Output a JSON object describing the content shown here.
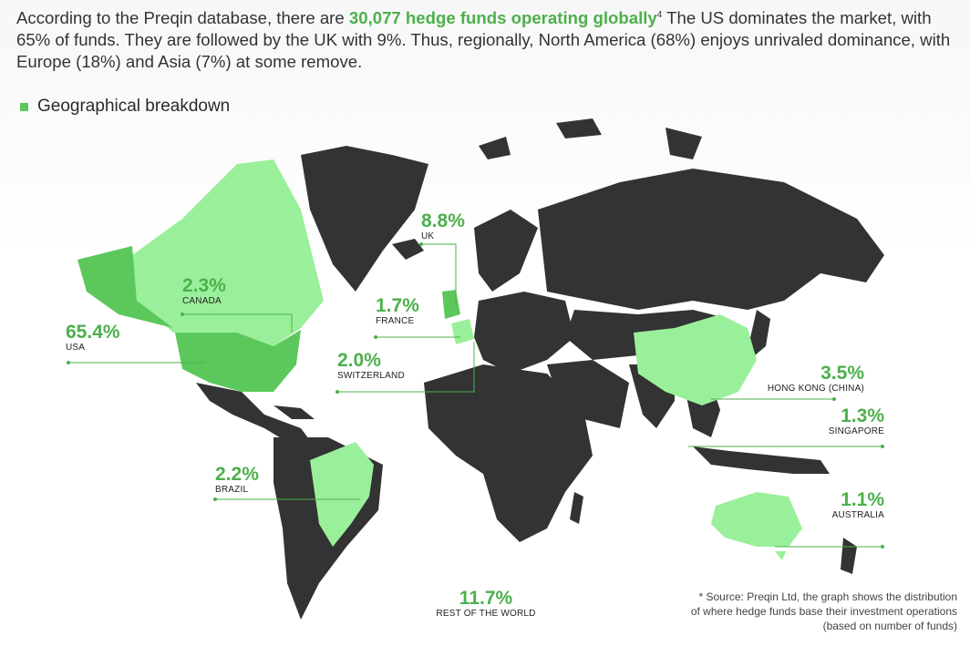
{
  "intro": {
    "before": "According to the Preqin database, there are ",
    "highlight": "30,077 hedge funds operating globally",
    "footnote": "4",
    "after": " The US dominates the market, with 65% of funds. They are followed by the UK with 9%. Thus, regionally, North America (68%) enjoys unrivaled dominance, with Europe (18%) and Asia (7%) at some remove."
  },
  "legend": {
    "label": "Geographical breakdown"
  },
  "colors": {
    "dark_land": "#333333",
    "light_green": "#9af09a",
    "mid_green": "#5cc85c",
    "accent_text": "#4cb04c",
    "leader_line": "#4cb04c"
  },
  "regions": [
    {
      "pct": "65.4%",
      "name": "USA"
    },
    {
      "pct": "2.3%",
      "name": "CANADA"
    },
    {
      "pct": "8.8%",
      "name": "UK"
    },
    {
      "pct": "1.7%",
      "name": "FRANCE"
    },
    {
      "pct": "2.0%",
      "name": "SWITZERLAND"
    },
    {
      "pct": "2.2%",
      "name": "BRAZIL"
    },
    {
      "pct": "3.5%",
      "name": "HONG KONG (CHINA)"
    },
    {
      "pct": "1.3%",
      "name": "SINGAPORE"
    },
    {
      "pct": "1.1%",
      "name": "AUSTRALIA"
    },
    {
      "pct": "11.7%",
      "name": "REST OF THE WORLD"
    }
  ],
  "source": {
    "line1": "* Source: Preqin Ltd, the graph shows the distribution",
    "line2": "of where hedge funds base their investment operations",
    "line3": "(based on number of funds)"
  }
}
